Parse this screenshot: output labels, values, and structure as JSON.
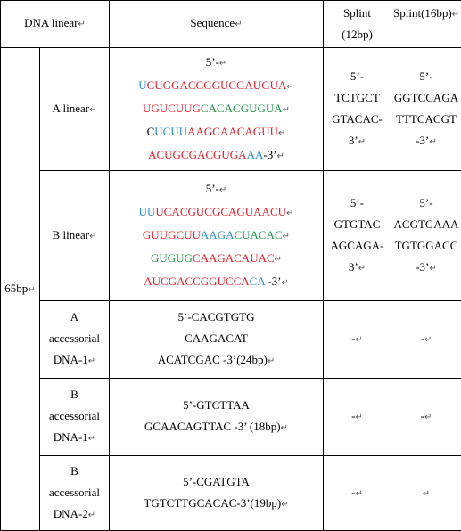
{
  "header": {
    "col1": "DNA linear",
    "col2": "Sequence",
    "col3_l1": "Splint",
    "col3_l2": "(12bp)",
    "col4": "Splint(16bp)"
  },
  "group_label": "65bp",
  "para_mark": "↵",
  "dash": "-",
  "colors": {
    "red": "#e8202a",
    "blue": "#2a8fd0",
    "green": "#1f9a4a",
    "black": "#000000"
  },
  "rows": {
    "a_linear": {
      "name": "A linear",
      "seq": [
        [
          {
            "t": "5’-",
            "c": "black"
          }
        ],
        [
          {
            "t": "U",
            "c": "blue"
          },
          {
            "t": "C",
            "c": "red"
          },
          {
            "t": "UGGACCGGUCGAUGUA",
            "c": "red"
          }
        ],
        [
          {
            "t": "UGUCUUG",
            "c": "red"
          },
          {
            "t": "CACACGUGUA",
            "c": "green"
          }
        ],
        [
          {
            "t": "C",
            "c": "black"
          },
          {
            "t": "UCUU",
            "c": "blue"
          },
          {
            "t": "AAGCAACAGUU",
            "c": "red"
          }
        ],
        [
          {
            "t": "ACUGCGACGUGA",
            "c": "red"
          },
          {
            "t": "AA",
            "c": "blue"
          },
          {
            "t": "-3’",
            "c": "black"
          }
        ]
      ],
      "splint12": [
        "5’-",
        "TCTGCT",
        "GTACAC-",
        "3’"
      ],
      "splint16": [
        "5’-",
        "GGTCCAGA",
        "TTTCACGT",
        "-3’"
      ]
    },
    "b_linear": {
      "name": "B linear",
      "seq": [
        [
          {
            "t": "5’-",
            "c": "black"
          }
        ],
        [
          {
            "t": "UU",
            "c": "blue"
          },
          {
            "t": "UCACGUCGCAGUAACU",
            "c": "red"
          }
        ],
        [
          {
            "t": "GUUGCUU",
            "c": "red"
          },
          {
            "t": "AAGA",
            "c": "blue"
          },
          {
            "t": "CUACAC",
            "c": "green"
          }
        ],
        [
          {
            "t": "GUGUG",
            "c": "green"
          },
          {
            "t": "CAAGACAUAC",
            "c": "red"
          }
        ],
        [
          {
            "t": "AUCGACCGGUCCA",
            "c": "red"
          },
          {
            "t": "CA",
            "c": "blue"
          },
          {
            "t": " -3’",
            "c": "black"
          }
        ]
      ],
      "splint12": [
        "5’-",
        "GTGTAC",
        "AGCAGA-",
        "3’"
      ],
      "splint16": [
        "5’-",
        "ACGTGAAA",
        "TGTGGACC",
        "-3’"
      ]
    },
    "a_acc1": {
      "name": [
        "A",
        "accessorial",
        "DNA-1"
      ],
      "seq": [
        "5’-CACGTGTG",
        "CAAGACAT",
        "ACATCGAC -3’(24bp)"
      ]
    },
    "b_acc1": {
      "name": [
        "B",
        "accessorial",
        "DNA-1"
      ],
      "seq": [
        "5’-GTCTTAA",
        "GCAACAGTTAC -3’ (18bp)"
      ]
    },
    "b_acc2": {
      "name": [
        "B",
        "accessorial",
        "DNA-2"
      ],
      "seq": [
        "5’-CGATGTA",
        "TGTCTTGCACAC-3’(19bp)"
      ]
    }
  }
}
